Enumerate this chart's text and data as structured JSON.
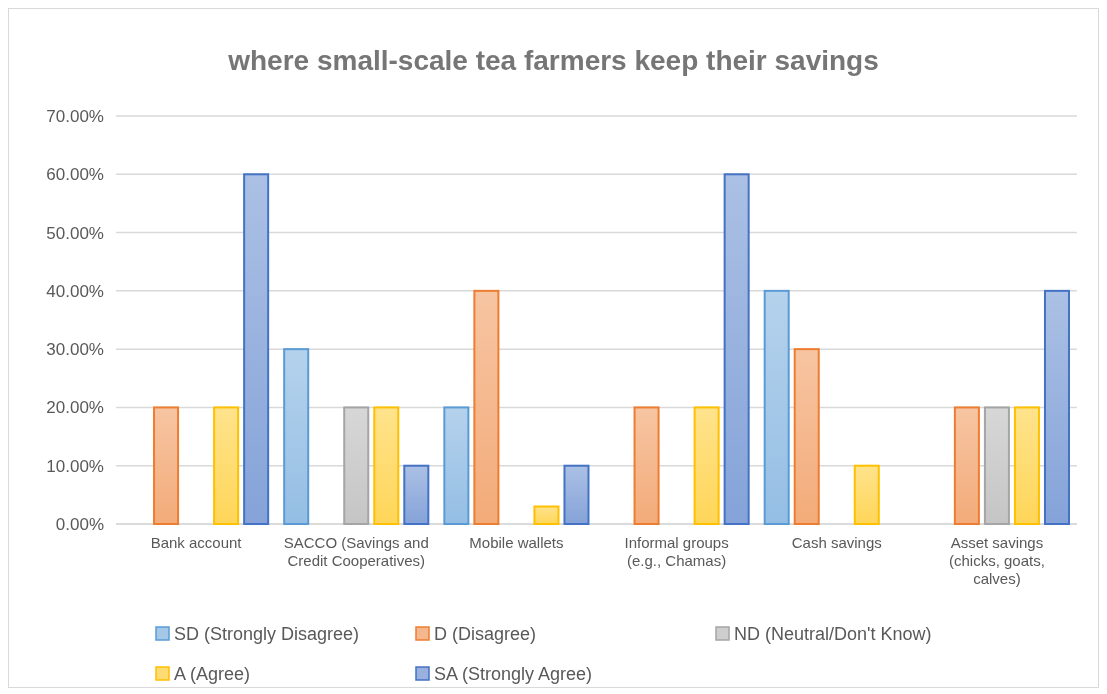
{
  "chart_data": {
    "type": "bar",
    "title": "where small-scale tea farmers keep their savings",
    "categories": [
      "Bank account",
      "SACCO (Savings and Credit Cooperatives)",
      "Mobile wallets",
      "Informal groups (e.g., Chamas)",
      "Cash savings",
      "Asset savings (chicks, goats, calves)"
    ],
    "series": [
      {
        "name": "SD (Strongly Disagree)",
        "color": "#5b9bd5",
        "values": [
          0,
          30,
          20,
          0,
          40,
          0
        ]
      },
      {
        "name": "D (Disagree)",
        "color": "#ed7d31",
        "values": [
          20,
          0,
          40,
          20,
          30,
          20
        ]
      },
      {
        "name": "ND (Neutral/Don't Know)",
        "color": "#a5a5a5",
        "values": [
          0,
          20,
          0,
          0,
          0,
          20
        ]
      },
      {
        "name": "A (Agree)",
        "color": "#ffc000",
        "values": [
          20,
          20,
          3,
          20,
          10,
          20
        ]
      },
      {
        "name": "SA (Strongly Agree)",
        "color": "#4472c4",
        "values": [
          60,
          10,
          10,
          60,
          0,
          40
        ]
      }
    ],
    "ylim": [
      0,
      70
    ],
    "yticks": [
      {
        "value": 0,
        "label": "0.00%"
      },
      {
        "value": 10,
        "label": "10.00%"
      },
      {
        "value": 20,
        "label": "20.00%"
      },
      {
        "value": 30,
        "label": "30.00%"
      },
      {
        "value": 40,
        "label": "40.00%"
      },
      {
        "value": 50,
        "label": "50.00%"
      },
      {
        "value": 60,
        "label": "60.00%"
      },
      {
        "value": 70,
        "label": "70.00%"
      }
    ],
    "grid": "y",
    "legend": "bottom"
  }
}
